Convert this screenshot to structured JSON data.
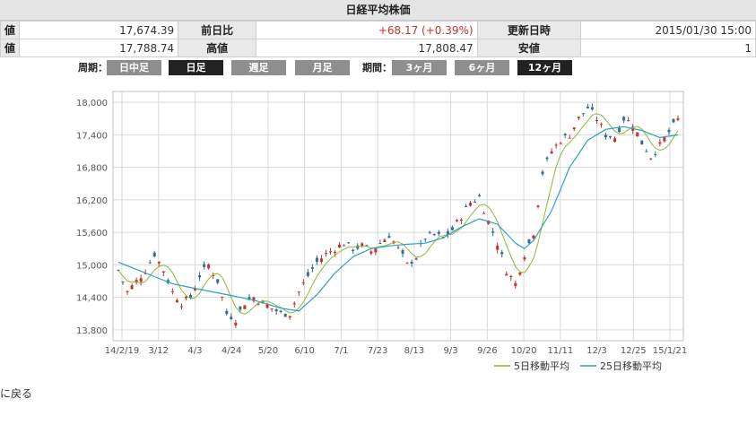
{
  "title": "日経平均株価",
  "quote": {
    "row1": [
      {
        "label": "値",
        "value": "17,674.39"
      },
      {
        "label": "前日比",
        "value": "+68.17 (+0.39%)"
      },
      {
        "label": "更新日時",
        "value": "2015/01/30 15:00"
      }
    ],
    "row2": [
      {
        "label": "値",
        "value": "17,788.74"
      },
      {
        "label": "高値",
        "value": "17,808.47"
      },
      {
        "label": "安値",
        "value": "1"
      }
    ]
  },
  "controls": {
    "period_label": "周期：",
    "periods": [
      "日中足",
      "日足",
      "週足",
      "月足"
    ],
    "period_selected": "日足",
    "range_label": "期間：",
    "ranges": [
      "3ヶ月",
      "6ヶ月",
      "12ヶ月"
    ],
    "range_selected": "12ヶ月"
  },
  "colors": {
    "up": "#c8322c",
    "down": "#2e6f95",
    "ma5": "#8cb832",
    "ma25": "#2aa0c8",
    "grid": "#d9d9d9"
  },
  "back_link": "に戻る",
  "chart_data": {
    "type": "candlestick",
    "ylim": [
      13600,
      18200
    ],
    "yticks": [
      13800,
      14400,
      15000,
      15600,
      16200,
      16800,
      17400,
      18000
    ],
    "ytick_labels": [
      "13,800",
      "14,400",
      "15,000",
      "15,600",
      "16,200",
      "16,800",
      "17,400",
      "18,000"
    ],
    "xtick_labels": [
      "14/2/19",
      "3/12",
      "4/3",
      "4/24",
      "5/20",
      "6/10",
      "7/1",
      "7/23",
      "8/13",
      "9/3",
      "9/26",
      "10/20",
      "11/11",
      "12/3",
      "12/25",
      "15/1/21"
    ],
    "legend": [
      "5日移動平均",
      "25日移動平均"
    ],
    "close_path": [
      [
        0,
        14900
      ],
      [
        2,
        14500
      ],
      [
        4,
        14700
      ],
      [
        6,
        14900
      ],
      [
        8,
        15200
      ],
      [
        10,
        14900
      ],
      [
        12,
        14500
      ],
      [
        14,
        14300
      ],
      [
        16,
        14400
      ],
      [
        18,
        14800
      ],
      [
        20,
        15000
      ],
      [
        22,
        14700
      ],
      [
        24,
        14100
      ],
      [
        26,
        14000
      ],
      [
        28,
        14300
      ],
      [
        30,
        14400
      ],
      [
        32,
        14300
      ],
      [
        34,
        14200
      ],
      [
        36,
        14100
      ],
      [
        38,
        14100
      ],
      [
        40,
        14500
      ],
      [
        42,
        14800
      ],
      [
        44,
        15050
      ],
      [
        46,
        15200
      ],
      [
        48,
        15300
      ],
      [
        50,
        15400
      ],
      [
        52,
        15300
      ],
      [
        54,
        15350
      ],
      [
        56,
        15250
      ],
      [
        58,
        15400
      ],
      [
        60,
        15550
      ],
      [
        62,
        15300
      ],
      [
        64,
        15000
      ],
      [
        66,
        15150
      ],
      [
        68,
        15500
      ],
      [
        70,
        15550
      ],
      [
        72,
        15500
      ],
      [
        74,
        15650
      ],
      [
        76,
        15900
      ],
      [
        78,
        16150
      ],
      [
        80,
        16250
      ],
      [
        82,
        15800
      ],
      [
        84,
        15400
      ],
      [
        86,
        14900
      ],
      [
        88,
        14650
      ],
      [
        90,
        15200
      ],
      [
        92,
        15600
      ],
      [
        94,
        16700
      ],
      [
        96,
        17100
      ],
      [
        98,
        17300
      ],
      [
        100,
        17400
      ],
      [
        102,
        17700
      ],
      [
        104,
        17900
      ],
      [
        106,
        17700
      ],
      [
        108,
        17400
      ],
      [
        110,
        17350
      ],
      [
        112,
        17700
      ],
      [
        114,
        17600
      ],
      [
        116,
        17250
      ],
      [
        118,
        17000
      ],
      [
        120,
        17200
      ],
      [
        122,
        17450
      ],
      [
        124,
        17680
      ]
    ],
    "ma25_path": [
      [
        0,
        15050
      ],
      [
        6,
        14850
      ],
      [
        12,
        14650
      ],
      [
        18,
        14550
      ],
      [
        24,
        14450
      ],
      [
        30,
        14350
      ],
      [
        36,
        14200
      ],
      [
        40,
        14150
      ],
      [
        44,
        14450
      ],
      [
        48,
        14850
      ],
      [
        52,
        15150
      ],
      [
        56,
        15300
      ],
      [
        60,
        15350
      ],
      [
        64,
        15380
      ],
      [
        68,
        15400
      ],
      [
        72,
        15500
      ],
      [
        76,
        15700
      ],
      [
        80,
        15850
      ],
      [
        84,
        15750
      ],
      [
        88,
        15400
      ],
      [
        90,
        15300
      ],
      [
        92,
        15450
      ],
      [
        96,
        16000
      ],
      [
        100,
        16800
      ],
      [
        104,
        17300
      ],
      [
        108,
        17500
      ],
      [
        112,
        17550
      ],
      [
        116,
        17480
      ],
      [
        120,
        17350
      ],
      [
        124,
        17400
      ]
    ]
  }
}
